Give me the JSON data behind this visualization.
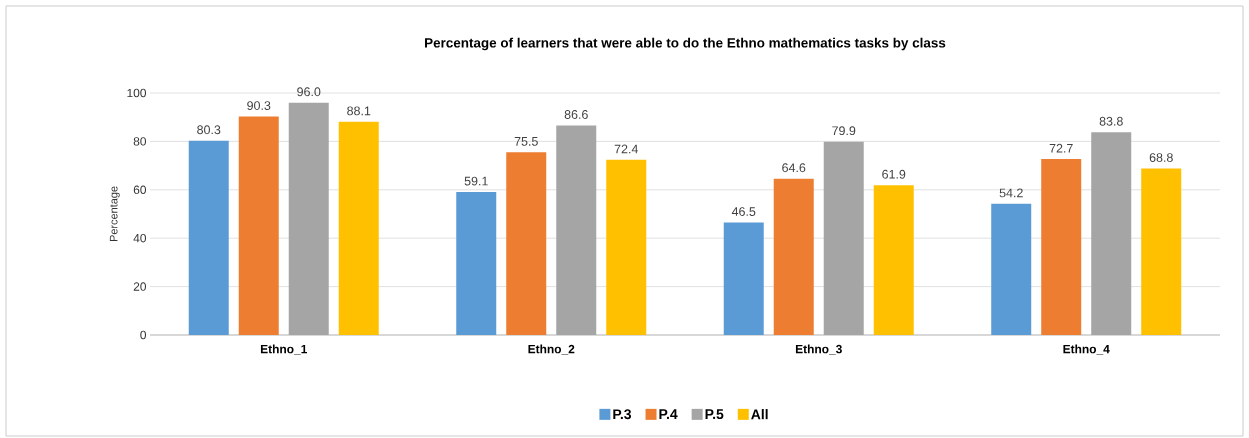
{
  "chart_data": {
    "type": "bar",
    "title": "Percentage of learners that were able to do the Ethno mathematics tasks by class",
    "ylabel": "Percentage",
    "categories": [
      "Ethno_1",
      "Ethno_2",
      "Ethno_3",
      "Ethno_4"
    ],
    "series": [
      {
        "name": "P.3",
        "color": "#5b9bd5",
        "values": [
          80.3,
          59.1,
          46.5,
          54.2
        ],
        "value_labels": [
          "80.3",
          "59.1",
          "46.5",
          "54.2"
        ]
      },
      {
        "name": "P.4",
        "color": "#ed7d31",
        "values": [
          90.3,
          75.5,
          64.6,
          72.7
        ],
        "value_labels": [
          "90.3",
          "75.5",
          "64.6",
          "72.7"
        ]
      },
      {
        "name": "P.5",
        "color": "#a5a5a5",
        "values": [
          96.0,
          86.6,
          79.9,
          83.8
        ],
        "value_labels": [
          "96.0",
          "86.6",
          "79.9",
          "83.8"
        ]
      },
      {
        "name": "All",
        "color": "#ffc000",
        "values": [
          88.1,
          72.4,
          61.9,
          68.8
        ],
        "value_labels": [
          "88.1",
          "72.4",
          "61.9",
          "68.8"
        ]
      }
    ],
    "ylim": [
      0,
      100
    ],
    "yticks": [
      0,
      20,
      40,
      60,
      80,
      100
    ],
    "grid": "y",
    "legend": "bottom"
  }
}
